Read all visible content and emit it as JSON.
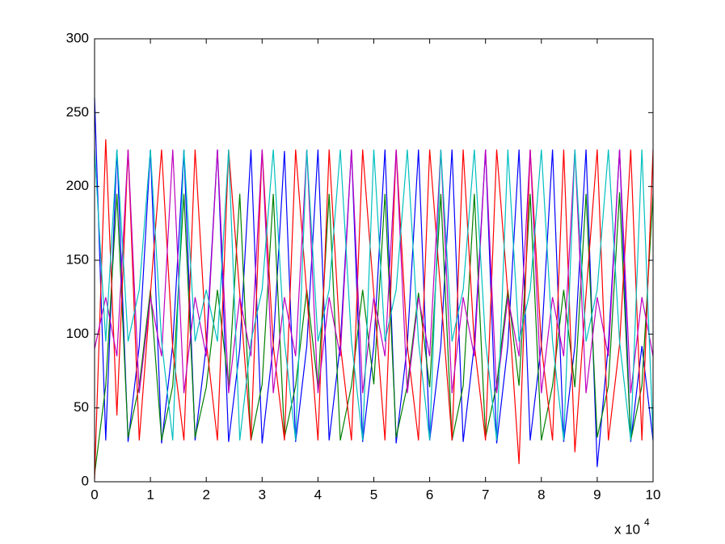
{
  "chart_data": {
    "type": "line",
    "x": [
      0,
      2000,
      4000,
      6000,
      8000,
      10000,
      12000,
      14000,
      16000,
      18000,
      20000,
      22000,
      24000,
      26000,
      28000,
      30000,
      32000,
      34000,
      36000,
      38000,
      40000,
      42000,
      44000,
      46000,
      48000,
      50000,
      52000,
      54000,
      56000,
      58000,
      60000,
      62000,
      64000,
      66000,
      68000,
      70000,
      72000,
      74000,
      76000,
      78000,
      80000,
      82000,
      84000,
      86000,
      88000,
      90000,
      92000,
      94000,
      96000,
      98000,
      100000
    ],
    "series": [
      {
        "color": "#0000ff",
        "values": [
          260,
          28,
          225,
          27,
          92,
          225,
          26,
          93,
          225,
          28,
          92,
          225,
          27,
          90,
          225,
          26,
          93,
          224,
          27,
          92,
          225,
          28,
          93,
          225,
          27,
          92,
          225,
          26,
          93,
          225,
          28,
          92,
          225,
          27,
          93,
          225,
          26,
          92,
          225,
          28,
          93,
          225,
          27,
          92,
          225,
          10,
          93,
          225,
          27,
          92,
          28
        ]
      },
      {
        "color": "#008000",
        "values": [
          5,
          65,
          195,
          30,
          65,
          130,
          28,
          65,
          195,
          30,
          64,
          130,
          65,
          195,
          28,
          66,
          195,
          30,
          65,
          130,
          64,
          195,
          28,
          65,
          130,
          66,
          195,
          30,
          65,
          128,
          64,
          195,
          28,
          65,
          195,
          30,
          66,
          130,
          65,
          195,
          28,
          65,
          130,
          64,
          195,
          30,
          65,
          196,
          28,
          65,
          195
        ]
      },
      {
        "color": "#ff0000",
        "values": [
          2,
          232,
          45,
          225,
          28,
          127,
          225,
          90,
          28,
          225,
          95,
          28,
          225,
          127,
          28,
          225,
          92,
          28,
          225,
          127,
          28,
          225,
          93,
          28,
          225,
          127,
          28,
          225,
          92,
          28,
          225,
          127,
          28,
          225,
          93,
          28,
          225,
          127,
          12,
          225,
          92,
          28,
          225,
          20,
          127,
          225,
          28,
          93,
          225,
          28,
          225
        ]
      },
      {
        "color": "#bf00bf",
        "values": [
          90,
          125,
          85,
          225,
          60,
          125,
          85,
          225,
          60,
          125,
          85,
          225,
          60,
          125,
          85,
          225,
          60,
          125,
          85,
          225,
          60,
          125,
          85,
          225,
          60,
          125,
          85,
          225,
          60,
          125,
          85,
          225,
          60,
          125,
          85,
          225,
          60,
          125,
          85,
          225,
          60,
          125,
          85,
          225,
          60,
          125,
          85,
          225,
          60,
          125,
          85
        ]
      },
      {
        "color": "#00bfbf",
        "values": [
          225,
          95,
          225,
          95,
          130,
          225,
          95,
          28,
          225,
          95,
          130,
          95,
          225,
          28,
          95,
          130,
          225,
          95,
          28,
          225,
          95,
          130,
          225,
          95,
          28,
          225,
          95,
          130,
          225,
          95,
          28,
          225,
          95,
          130,
          225,
          95,
          28,
          225,
          95,
          130,
          225,
          95,
          28,
          225,
          95,
          130,
          225,
          95,
          28,
          225,
          30
        ]
      }
    ],
    "xlim": [
      0,
      100000
    ],
    "xticks": [
      {
        "value": 0,
        "label": "0"
      },
      {
        "value": 10000,
        "label": "1"
      },
      {
        "value": 20000,
        "label": "2"
      },
      {
        "value": 30000,
        "label": "3"
      },
      {
        "value": 40000,
        "label": "4"
      },
      {
        "value": 50000,
        "label": "5"
      },
      {
        "value": 60000,
        "label": "6"
      },
      {
        "value": 70000,
        "label": "7"
      },
      {
        "value": 80000,
        "label": "8"
      },
      {
        "value": 90000,
        "label": "9"
      },
      {
        "value": 100000,
        "label": "10"
      }
    ],
    "x_multiplier": "x 10",
    "x_multiplier_exponent": "4",
    "ylim": [
      0,
      300
    ],
    "yticks": [
      0,
      50,
      100,
      150,
      200,
      250,
      300
    ],
    "grid": false
  }
}
